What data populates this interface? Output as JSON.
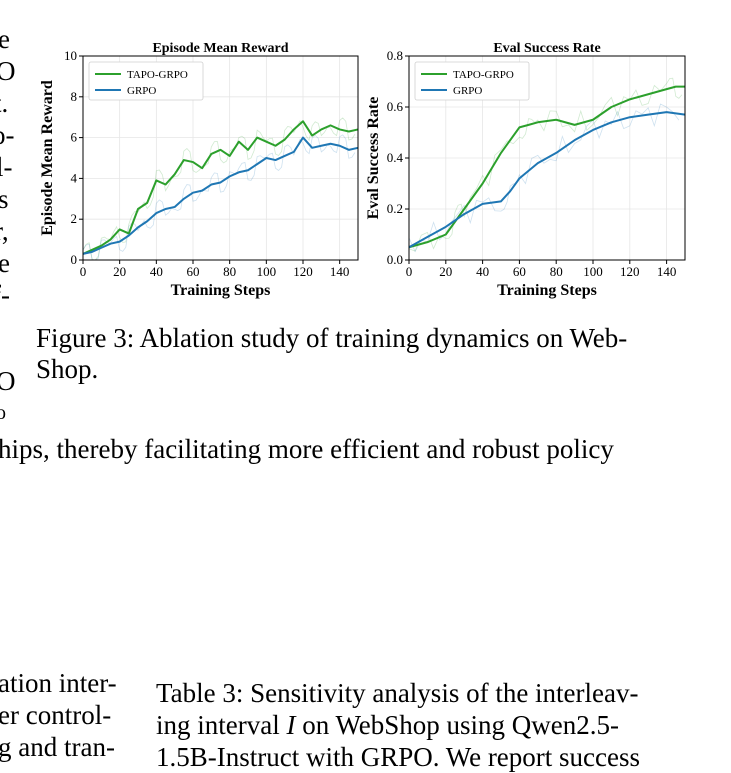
{
  "left_margin_fragments": [
    "e",
    "O",
    "t.",
    "o-",
    "l-",
    "s",
    "r,",
    "e",
    "f-",
    "O",
    "o"
  ],
  "body_line": "hips, thereby facilitating more efficient and robust policy",
  "figure_caption": "Figure 3: Ablation study of training dynamics on Web-Shop.",
  "figure_caption_lines": [
    "Figure 3: Ablation study of training dynamics on Web-",
    "Shop."
  ],
  "bottom_left_fragments": [
    "ation inter-",
    "er control-",
    "g and tran-"
  ],
  "table_caption_lines": [
    "Table 3: Sensitivity analysis of the interleav-",
    "ing interval I on WebShop using Qwen2.5-",
    "1.5B-Instruct with GRPO. We report success"
  ],
  "chart_data": [
    {
      "type": "line",
      "title": "Episode Mean Reward",
      "xlabel": "Training Steps",
      "ylabel": "Episode Mean Reward",
      "xlim": [
        0,
        150
      ],
      "ylim": [
        0,
        10
      ],
      "xticks": [
        0,
        20,
        40,
        60,
        80,
        100,
        120,
        140
      ],
      "yticks": [
        0,
        2,
        4,
        6,
        8,
        10
      ],
      "grid": true,
      "legend_position": "top-left",
      "series": [
        {
          "name": "TAPO-GRPO",
          "color": "#2ca02c",
          "x": [
            0,
            5,
            10,
            15,
            20,
            25,
            30,
            35,
            40,
            45,
            50,
            55,
            60,
            65,
            70,
            75,
            80,
            85,
            90,
            95,
            100,
            105,
            110,
            115,
            120,
            125,
            130,
            135,
            140,
            145,
            150
          ],
          "y": [
            0.3,
            0.5,
            0.7,
            1.0,
            1.5,
            1.3,
            2.5,
            2.8,
            3.9,
            3.7,
            4.2,
            4.9,
            4.8,
            4.5,
            5.2,
            5.4,
            5.1,
            5.8,
            5.4,
            6.0,
            5.8,
            5.6,
            5.9,
            6.4,
            6.8,
            6.1,
            6.4,
            6.6,
            6.4,
            6.3,
            6.4
          ]
        },
        {
          "name": "GRPO",
          "color": "#1f77b4",
          "x": [
            0,
            5,
            10,
            15,
            20,
            25,
            30,
            35,
            40,
            45,
            50,
            55,
            60,
            65,
            70,
            75,
            80,
            85,
            90,
            95,
            100,
            105,
            110,
            115,
            120,
            125,
            130,
            135,
            140,
            145,
            150
          ],
          "y": [
            0.3,
            0.4,
            0.6,
            0.8,
            0.9,
            1.2,
            1.6,
            1.9,
            2.3,
            2.5,
            2.6,
            3.0,
            3.3,
            3.4,
            3.7,
            3.8,
            4.1,
            4.3,
            4.4,
            4.7,
            5.0,
            4.9,
            5.1,
            5.3,
            6.0,
            5.5,
            5.6,
            5.7,
            5.6,
            5.4,
            5.5
          ]
        }
      ]
    },
    {
      "type": "line",
      "title": "Eval Success Rate",
      "xlabel": "Training Steps",
      "ylabel": "Eval Success Rate",
      "xlim": [
        0,
        150
      ],
      "ylim": [
        0,
        0.8
      ],
      "xticks": [
        0,
        20,
        40,
        60,
        80,
        100,
        120,
        140
      ],
      "yticks": [
        0.0,
        0.2,
        0.4,
        0.6,
        0.8
      ],
      "grid": true,
      "legend_position": "top-left",
      "series": [
        {
          "name": "TAPO-GRPO",
          "color": "#2ca02c",
          "x": [
            0,
            10,
            20,
            25,
            30,
            40,
            50,
            60,
            65,
            70,
            80,
            90,
            100,
            110,
            120,
            130,
            140,
            145,
            150
          ],
          "y": [
            0.05,
            0.07,
            0.1,
            0.15,
            0.2,
            0.3,
            0.42,
            0.52,
            0.53,
            0.54,
            0.55,
            0.53,
            0.55,
            0.6,
            0.63,
            0.65,
            0.67,
            0.68,
            0.68
          ]
        },
        {
          "name": "GRPO",
          "color": "#1f77b4",
          "x": [
            0,
            10,
            20,
            30,
            40,
            50,
            55,
            60,
            70,
            80,
            90,
            100,
            110,
            120,
            130,
            140,
            150
          ],
          "y": [
            0.05,
            0.09,
            0.13,
            0.18,
            0.22,
            0.23,
            0.27,
            0.32,
            0.38,
            0.42,
            0.47,
            0.51,
            0.54,
            0.56,
            0.57,
            0.58,
            0.57
          ]
        }
      ]
    }
  ]
}
